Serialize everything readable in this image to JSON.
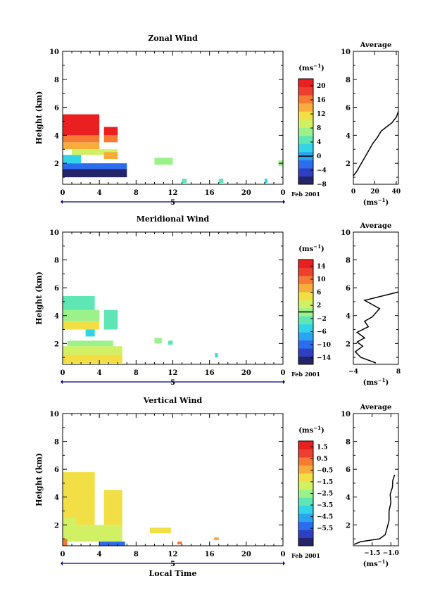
{
  "colors": {
    "colormap": [
      "#24246b",
      "#2f3fc4",
      "#2c6df0",
      "#2aa4f0",
      "#33d3e8",
      "#5ee6b4",
      "#9cf28a",
      "#d2f064",
      "#f2df46",
      "#f7ad3c",
      "#f57a33",
      "#ec3f2e",
      "#ea2020"
    ],
    "axis": "#000000",
    "date_marker": "#00008b"
  },
  "xaxis_common": {
    "ticks": [
      "0",
      "4",
      "8",
      "12",
      "16",
      "20",
      "0"
    ],
    "date_tick": "5",
    "date_label": "Feb 2001",
    "xlabel": "Local Time"
  },
  "chart_data": [
    {
      "type": "heatmap",
      "title": "Zonal Wind",
      "ylabel": "Height (km)",
      "xlim": [
        0,
        24
      ],
      "ylim": [
        0.5,
        10
      ],
      "yticks": [
        "2",
        "4",
        "6",
        "8",
        "10"
      ],
      "colorbar": {
        "unit_prefix": "(ms",
        "unit_exp": "−1",
        "unit_suffix": ")",
        "vmin": -8,
        "vmax": 22,
        "labels": [
          "20",
          "16",
          "12",
          "8",
          "4",
          "0",
          "−4",
          "−8"
        ],
        "label_values": [
          20,
          16,
          12,
          8,
          4,
          0,
          -4,
          -8
        ],
        "contour": 0
      },
      "cells": [
        {
          "x": [
            0,
            7
          ],
          "y": [
            1.0,
            1.6
          ],
          "v": -6
        },
        {
          "x": [
            0,
            7
          ],
          "y": [
            1.6,
            2.0
          ],
          "v": -3
        },
        {
          "x": [
            0,
            2
          ],
          "y": [
            2.0,
            2.6
          ],
          "v": 2
        },
        {
          "x": [
            1,
            6
          ],
          "y": [
            2.6,
            3.0
          ],
          "v": 9
        },
        {
          "x": [
            0,
            4
          ],
          "y": [
            3.0,
            3.5
          ],
          "v": 13
        },
        {
          "x": [
            0,
            4
          ],
          "y": [
            3.5,
            4.0
          ],
          "v": 17
        },
        {
          "x": [
            0,
            4
          ],
          "y": [
            4.0,
            5.5
          ],
          "v": 21
        },
        {
          "x": [
            4.5,
            6
          ],
          "y": [
            3.5,
            4.0
          ],
          "v": 17
        },
        {
          "x": [
            4.5,
            6
          ],
          "y": [
            4.0,
            4.6
          ],
          "v": 21
        },
        {
          "x": [
            4.5,
            6
          ],
          "y": [
            2.3,
            2.8
          ],
          "v": 14
        },
        {
          "x": [
            10,
            12
          ],
          "y": [
            1.9,
            2.4
          ],
          "v": 8
        },
        {
          "x": [
            13,
            13.5
          ],
          "y": [
            0.6,
            0.9
          ],
          "v": 4
        },
        {
          "x": [
            17,
            17.5
          ],
          "y": [
            0.6,
            0.9
          ],
          "v": 5
        },
        {
          "x": [
            22,
            22.3
          ],
          "y": [
            0.6,
            0.9
          ],
          "v": 3
        },
        {
          "x": [
            23.5,
            24
          ],
          "y": [
            1.8,
            2.2
          ],
          "v": 8
        }
      ],
      "profile": {
        "title": "Average",
        "xlim": [
          0,
          42
        ],
        "ylim": [
          0.5,
          10
        ],
        "xticks": [
          "0",
          "20",
          "40"
        ],
        "xtick_values": [
          0,
          20,
          40
        ],
        "yticks": [
          "2",
          "4",
          "6",
          "8",
          "10"
        ],
        "xlabel_prefix": "(ms",
        "xlabel_exp": "−1",
        "xlabel_suffix": ")",
        "x": [
          0,
          3,
          6,
          9,
          12,
          15,
          18,
          22,
          26,
          31,
          36,
          40,
          42
        ],
        "y": [
          1.1,
          1.4,
          1.8,
          2.2,
          2.6,
          3.0,
          3.4,
          3.8,
          4.3,
          4.6,
          4.9,
          5.3,
          5.7
        ]
      }
    },
    {
      "type": "heatmap",
      "title": "Meridional Wind",
      "ylabel": "Height (km)",
      "xlim": [
        0,
        24
      ],
      "ylim": [
        0.5,
        10
      ],
      "yticks": [
        "2",
        "4",
        "6",
        "8",
        "10"
      ],
      "colorbar": {
        "unit_prefix": "(ms",
        "unit_exp": "−1",
        "unit_suffix": ")",
        "vmin": -16,
        "vmax": 16,
        "labels": [
          "14",
          "10",
          "6",
          "2",
          "−2",
          "−6",
          "−10",
          "−14"
        ],
        "label_values": [
          14,
          10,
          6,
          2,
          -2,
          -6,
          -10,
          -14
        ],
        "contour": 0
      },
      "cells": [
        {
          "x": [
            0,
            6.5
          ],
          "y": [
            0.6,
            1.2
          ],
          "v": 6
        },
        {
          "x": [
            0,
            6.5
          ],
          "y": [
            1.2,
            1.8
          ],
          "v": 2
        },
        {
          "x": [
            0.5,
            5.5
          ],
          "y": [
            1.8,
            2.2
          ],
          "v": 0
        },
        {
          "x": [
            0,
            4
          ],
          "y": [
            3.0,
            3.6
          ],
          "v": 4
        },
        {
          "x": [
            0,
            4
          ],
          "y": [
            3.6,
            4.4
          ],
          "v": 1
        },
        {
          "x": [
            0,
            3.5
          ],
          "y": [
            4.4,
            5.4
          ],
          "v": -3
        },
        {
          "x": [
            4.5,
            6
          ],
          "y": [
            3.0,
            4.4
          ],
          "v": -2
        },
        {
          "x": [
            2.5,
            3.5
          ],
          "y": [
            2.5,
            3.0
          ],
          "v": -6
        },
        {
          "x": [
            10,
            10.8
          ],
          "y": [
            2.0,
            2.4
          ],
          "v": -1
        },
        {
          "x": [
            11.5,
            12
          ],
          "y": [
            1.9,
            2.2
          ],
          "v": -3
        },
        {
          "x": [
            16.6,
            16.9
          ],
          "y": [
            1.0,
            1.3
          ],
          "v": -6
        }
      ],
      "profile": {
        "title": "Average",
        "xlim": [
          -4,
          8
        ],
        "ylim": [
          0.5,
          10
        ],
        "xticks": [
          "−4",
          "8"
        ],
        "xtick_values": [
          -4,
          8
        ],
        "yticks": [
          "2",
          "4",
          "6",
          "8",
          "10"
        ],
        "xlabel_prefix": "(ms",
        "xlabel_exp": "−1",
        "xlabel_suffix": ")",
        "x": [
          2,
          0,
          -2,
          -3.5,
          -1.5,
          -3,
          -1,
          -3,
          0,
          -1,
          1,
          2,
          3,
          1,
          -1,
          5,
          8
        ],
        "y": [
          0.6,
          0.8,
          1.0,
          1.4,
          1.8,
          2.1,
          2.4,
          2.8,
          3.2,
          3.6,
          3.9,
          4.2,
          4.5,
          4.8,
          5.1,
          5.5,
          5.7
        ]
      }
    },
    {
      "type": "heatmap",
      "title": "Vertical Wind",
      "ylabel": "Height (km)",
      "xlim": [
        0,
        24
      ],
      "ylim": [
        0.5,
        10
      ],
      "yticks": [
        "2",
        "4",
        "6",
        "8",
        "10"
      ],
      "colorbar": {
        "unit_prefix": "(ms",
        "unit_exp": "−1",
        "unit_suffix": ")",
        "vmin": -7,
        "vmax": 2,
        "labels": [
          "1.5",
          "0.5",
          "−0.5",
          "−1.5",
          "−2.5",
          "−3.5",
          "−4.5",
          "−5.5"
        ],
        "label_values": [
          1.5,
          0.5,
          -0.5,
          -1.5,
          -2.5,
          -3.5,
          -4.5,
          -5.5
        ],
        "contour": null
      },
      "cells": [
        {
          "x": [
            0,
            3.5
          ],
          "y": [
            2.0,
            5.8
          ],
          "v": -1.2
        },
        {
          "x": [
            0,
            6.5
          ],
          "y": [
            0.8,
            2.0
          ],
          "v": -1.5
        },
        {
          "x": [
            4.5,
            6.5
          ],
          "y": [
            2.0,
            4.5
          ],
          "v": -1.3
        },
        {
          "x": [
            0,
            1.5
          ],
          "y": [
            1.5,
            2.5
          ],
          "v": -2.0
        },
        {
          "x": [
            4,
            6.8
          ],
          "y": [
            0.5,
            0.8
          ],
          "v": -5.5
        },
        {
          "x": [
            0,
            0.5
          ],
          "y": [
            0.5,
            1.0
          ],
          "v": 0.6
        },
        {
          "x": [
            9.5,
            11.8
          ],
          "y": [
            1.4,
            1.8
          ],
          "v": -0.8
        },
        {
          "x": [
            12.5,
            13
          ],
          "y": [
            0.6,
            0.8
          ],
          "v": 0.4
        },
        {
          "x": [
            16.5,
            17
          ],
          "y": [
            0.9,
            1.1
          ],
          "v": -0.5
        }
      ],
      "profile": {
        "title": "Average",
        "xlim": [
          -2,
          -0.8
        ],
        "ylim": [
          0.5,
          10
        ],
        "xticks": [
          "−1.5",
          "−1.0"
        ],
        "xtick_values": [
          -1.5,
          -1.0
        ],
        "yticks": [
          "2",
          "4",
          "6",
          "8",
          "10"
        ],
        "xlabel_prefix": "(ms",
        "xlabel_exp": "−1",
        "xlabel_suffix": ")",
        "x": [
          -1.98,
          -1.8,
          -1.3,
          -1.15,
          -1.1,
          -1.05,
          -1.05,
          -1.0,
          -1.02,
          -0.96,
          -0.95,
          -0.9
        ],
        "y": [
          0.6,
          0.8,
          1.0,
          1.3,
          1.8,
          2.3,
          3.0,
          3.6,
          4.2,
          4.7,
          5.2,
          5.6
        ]
      }
    }
  ]
}
